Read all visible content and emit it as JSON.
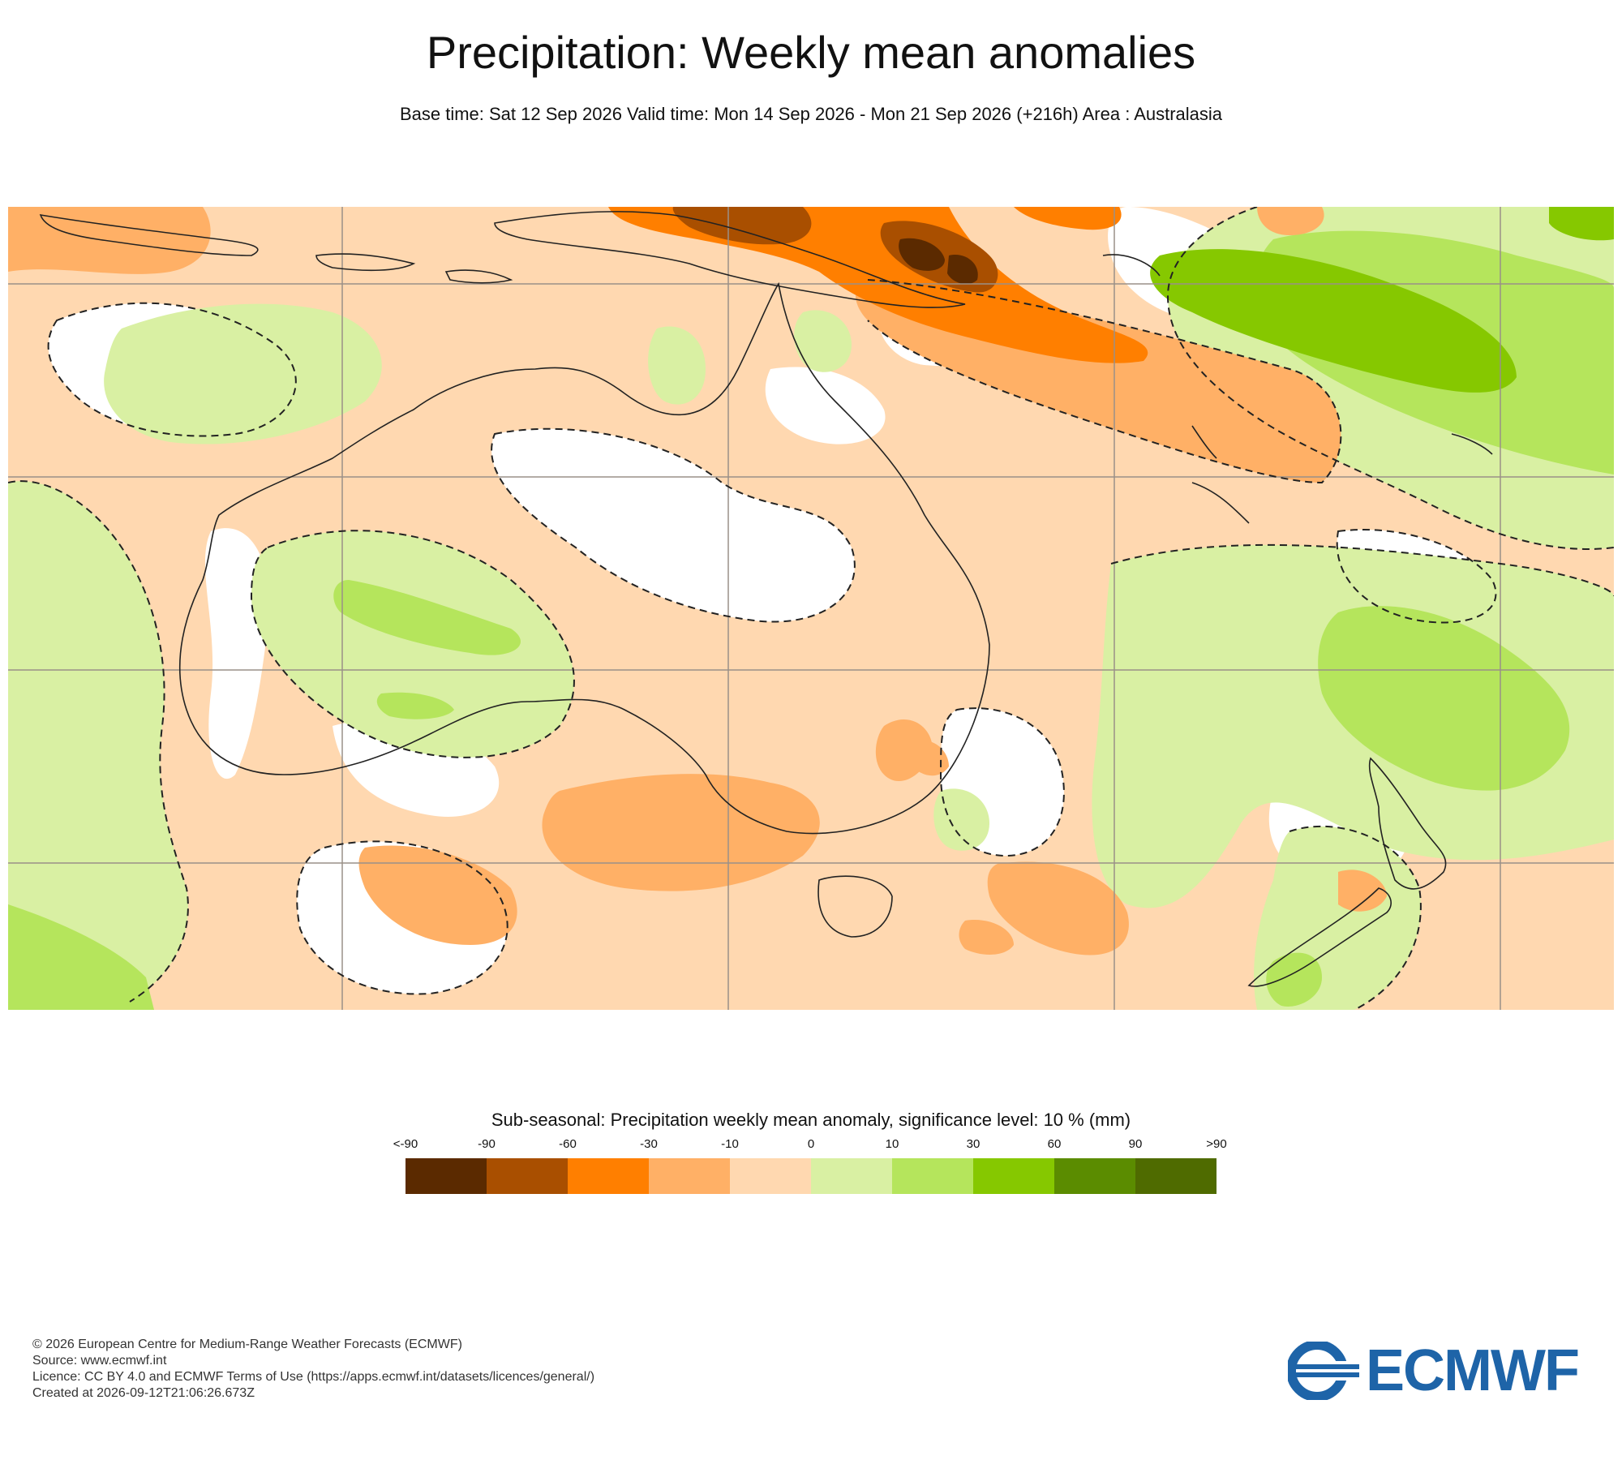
{
  "header": {
    "title": "Precipitation: Weekly mean anomalies",
    "subtitle": "Base time: Sat 12 Sep 2026 Valid time: Mon 14 Sep 2026 - Mon 21 Sep 2026 (+216h) Area : Australasia"
  },
  "map": {
    "area": "Australasia",
    "significance_contours": "dashed",
    "colors": {
      "lt_-90": "#5b2a00",
      "m90_m60": "#a94f00",
      "m60_m30": "#ff7f00",
      "m30_m10": "#ffb066",
      "m10_0": "#ffd8b0",
      "0_10": "#d9f0a3",
      "10_30": "#b5e55c",
      "30_60": "#86c800",
      "60_90": "#5b8c00",
      "gt_90": "#4f6b00",
      "land_outline": "#222222",
      "gridline": "#9a9088"
    }
  },
  "legend": {
    "title": "Sub-seasonal: Precipitation weekly mean anomaly, significance level: 10 % (mm)",
    "labels": [
      "<-90",
      "-90",
      "-60",
      "-30",
      "-10",
      "0",
      "10",
      "30",
      "60",
      "90",
      ">90"
    ],
    "colors": [
      "#5b2a00",
      "#a94f00",
      "#ff7f00",
      "#ffb066",
      "#ffd8b0",
      "#d9f0a3",
      "#b5e55c",
      "#86c800",
      "#5b8c00",
      "#4f6b00"
    ]
  },
  "footer": {
    "copyright": "© 2026 European Centre for Medium-Range Weather Forecasts (ECMWF)",
    "source": "Source: www.ecmwf.int",
    "licence": "Licence: CC BY 4.0 and ECMWF Terms of Use (https://apps.ecmwf.int/datasets/licences/general/)",
    "created": "Created at 2026-09-12T21:06:26.673Z"
  },
  "logo": {
    "text": "ECMWF",
    "color": "#1e64a8"
  }
}
